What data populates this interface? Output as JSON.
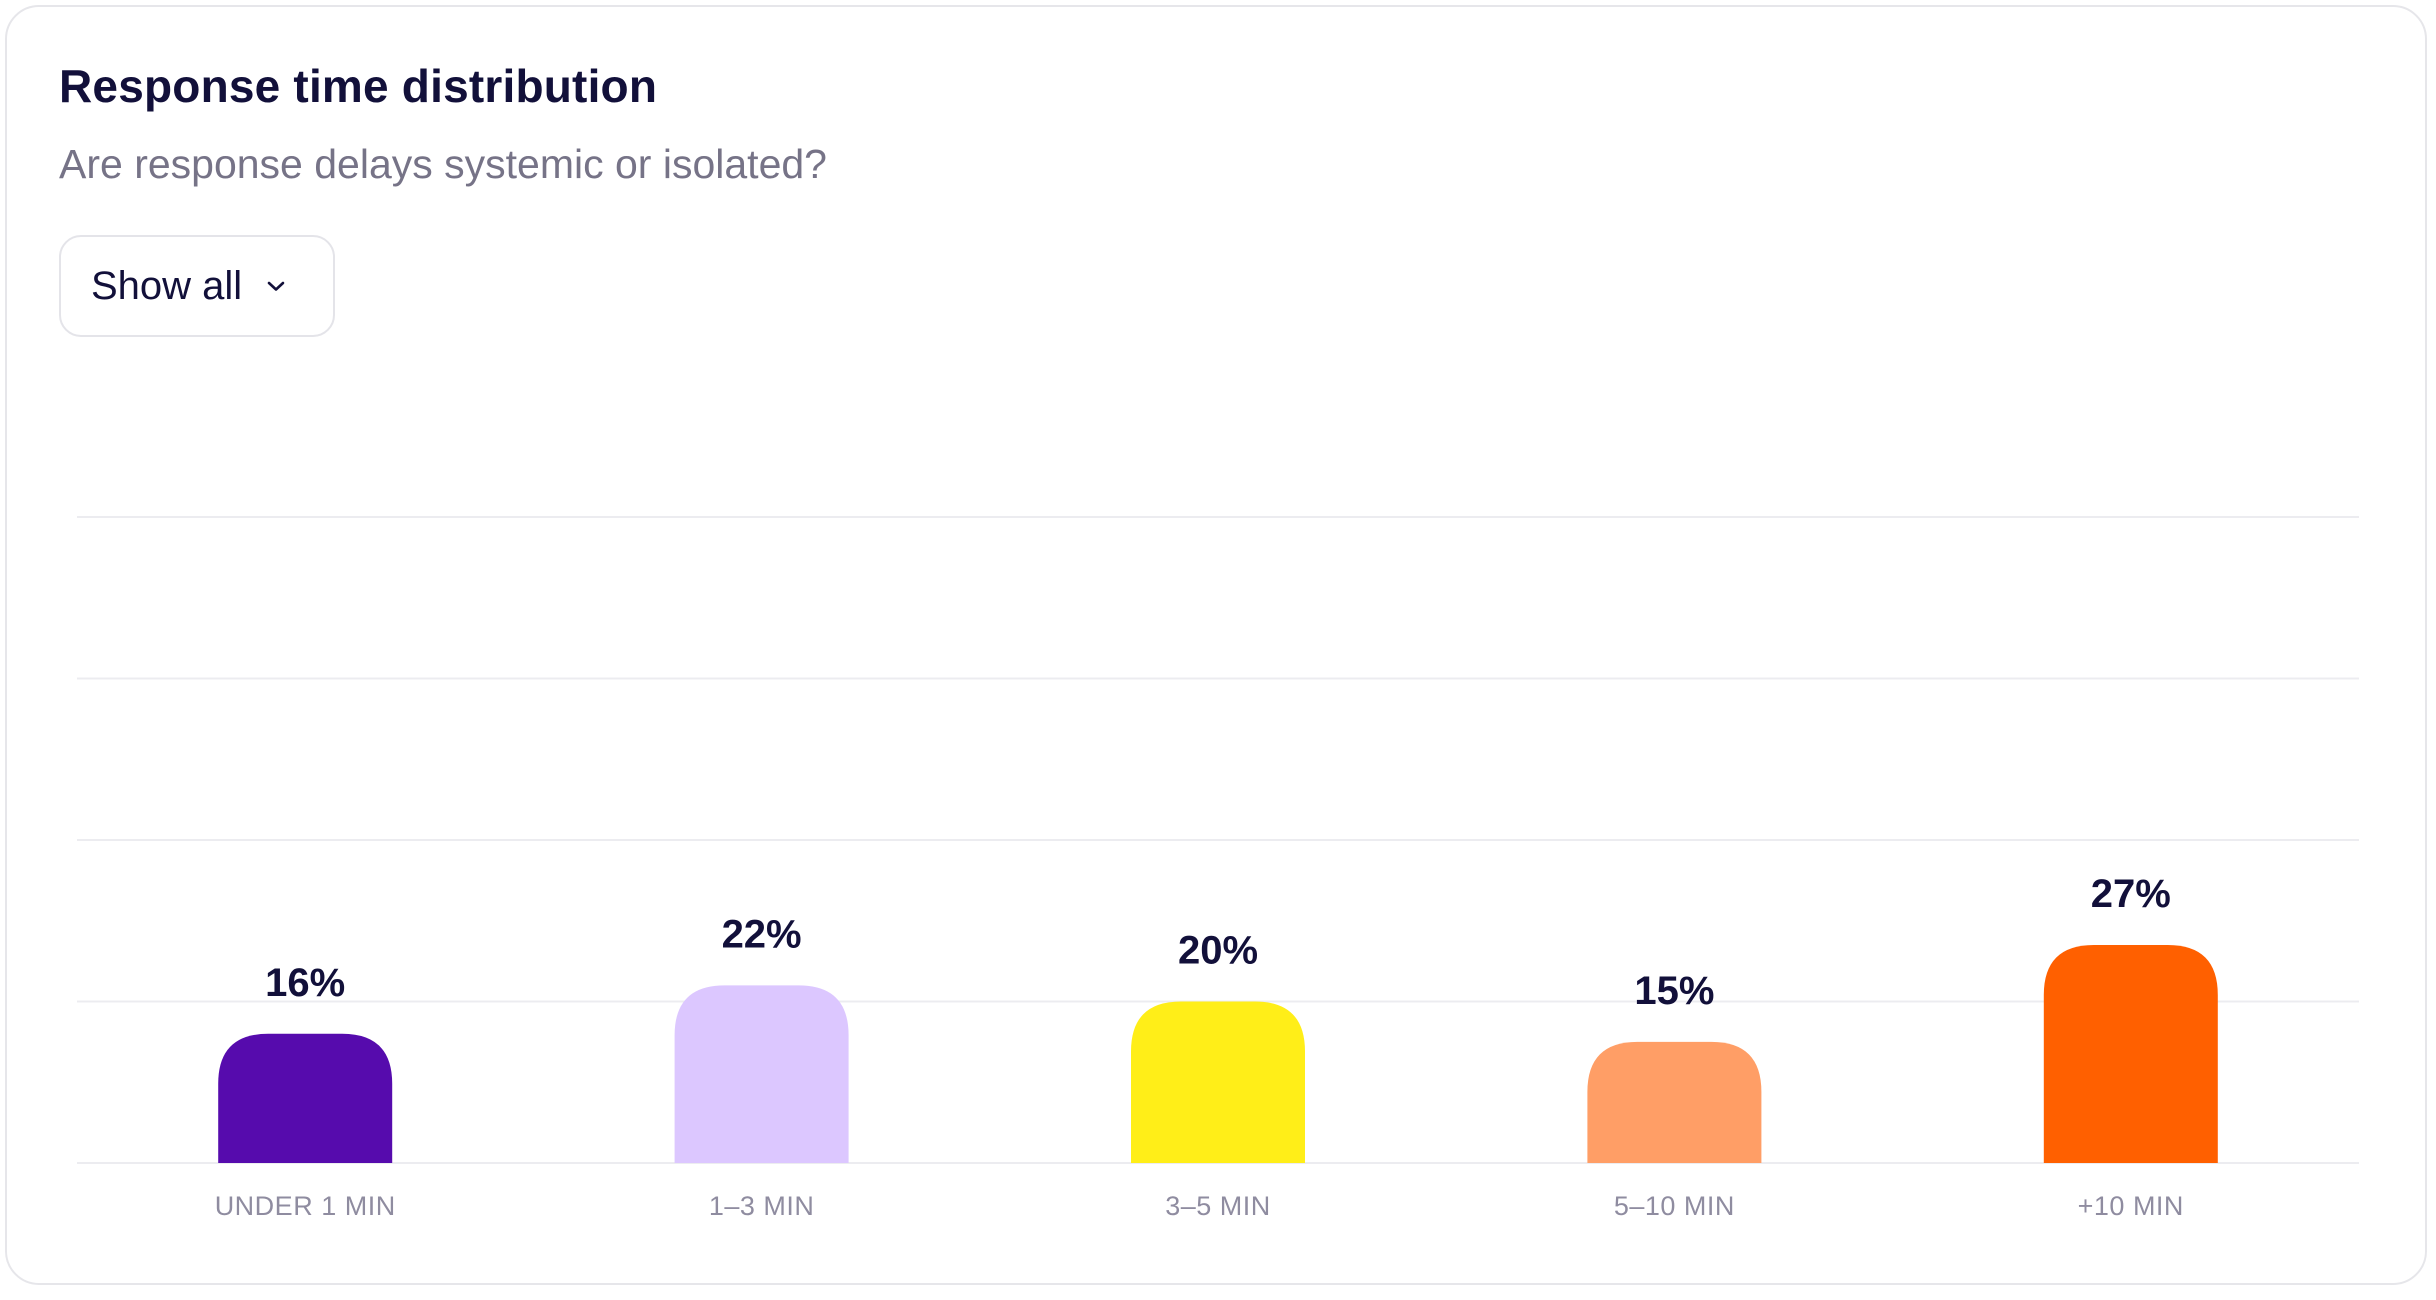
{
  "header": {
    "title": "Response time distribution",
    "subtitle": "Are response delays systemic or isolated?"
  },
  "filter": {
    "label": "Show all",
    "icon": "chevron-down-icon"
  },
  "chart_data": {
    "type": "bar",
    "categories": [
      "UNDER 1 MIN",
      "1–3 MIN",
      "3–5 MIN",
      "5–10 MIN",
      "+10 MIN"
    ],
    "values": [
      16,
      22,
      20,
      15,
      27
    ],
    "value_labels": [
      "16%",
      "22%",
      "20%",
      "15%",
      "27%"
    ],
    "colors": [
      "#560bad",
      "#dcc7ff",
      "#ffee18",
      "#ff9e66",
      "#ff6000"
    ],
    "ylim": [
      0,
      100
    ],
    "grid": true,
    "title": "",
    "xlabel": "",
    "ylabel": ""
  }
}
